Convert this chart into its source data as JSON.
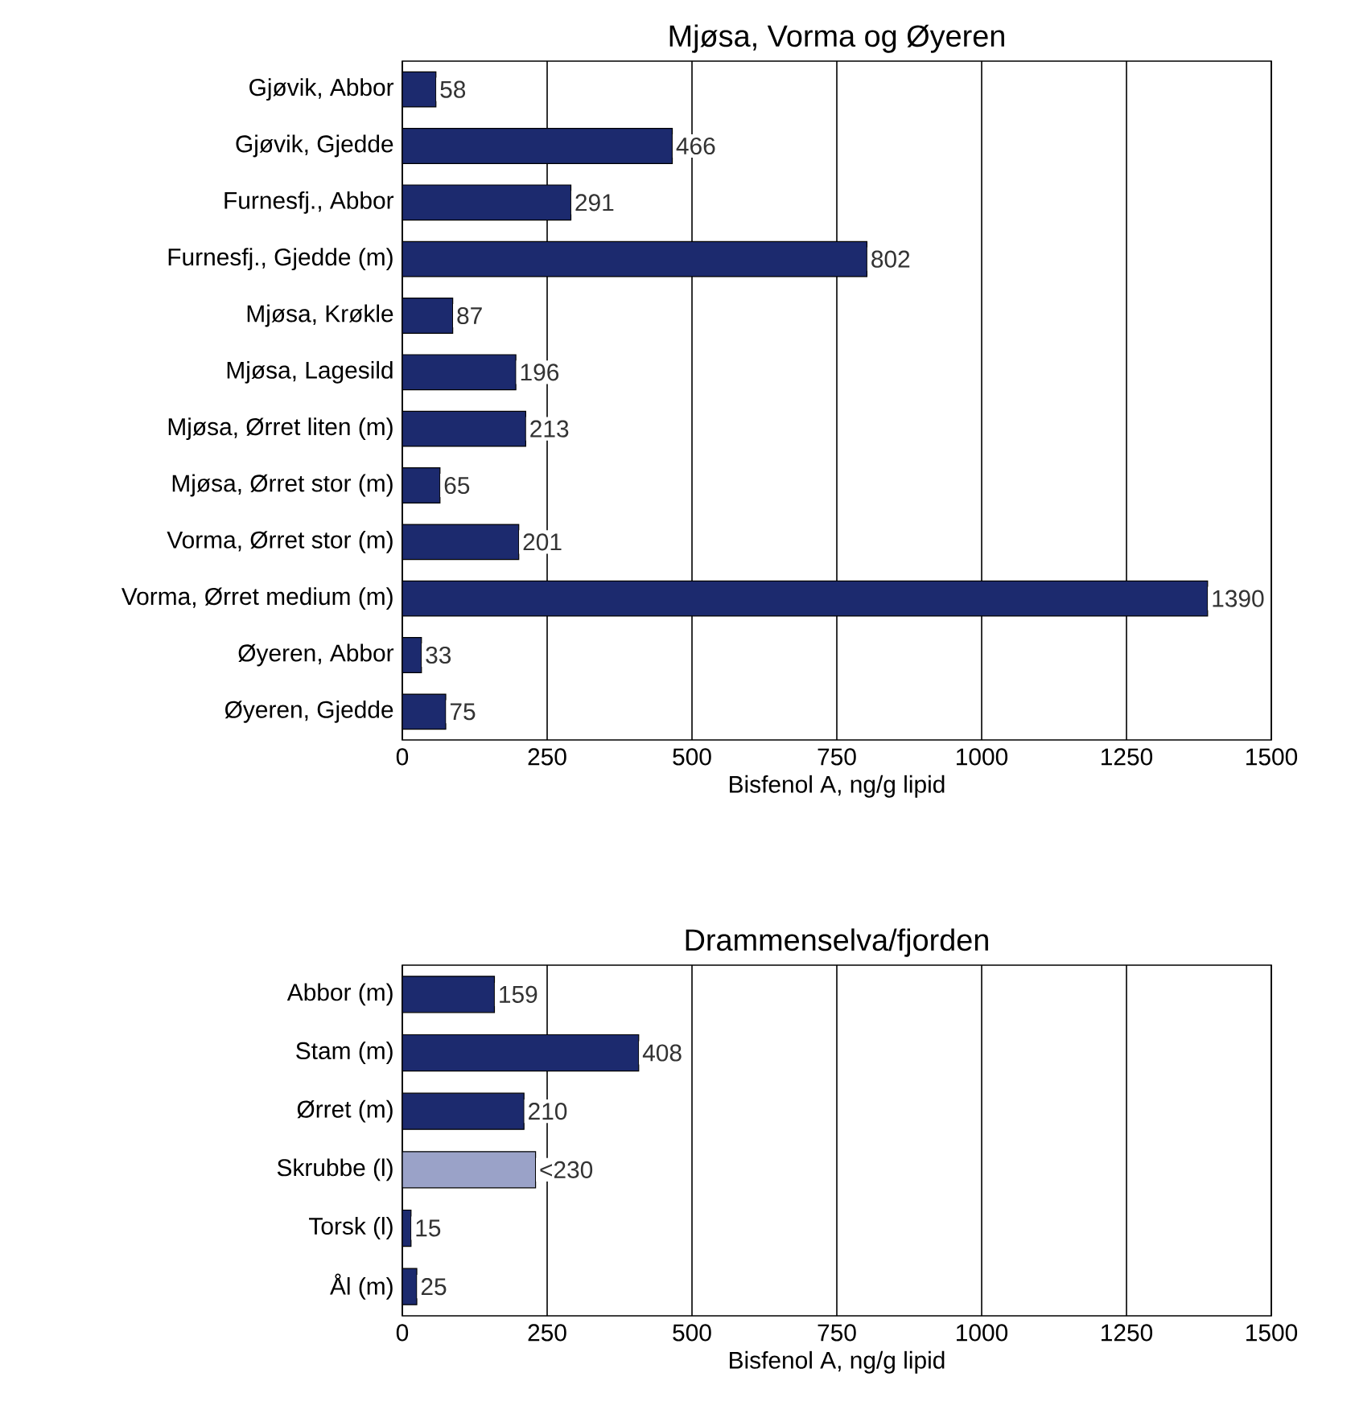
{
  "chart_data": [
    {
      "type": "bar",
      "orientation": "horizontal",
      "title": "Mjøsa, Vorma og Øyeren",
      "xlabel": "Bisfenol A, ng/g lipid",
      "categories": [
        "Gjøvik, Abbor",
        "Gjøvik, Gjedde",
        "Furnesfj., Abbor",
        "Furnesfj., Gjedde (m)",
        "Mjøsa, Krøkle",
        "Mjøsa, Lagesild",
        "Mjøsa, Ørret liten (m)",
        "Mjøsa, Ørret stor (m)",
        "Vorma, Ørret stor (m)",
        "Vorma, Ørret medium (m)",
        "Øyeren, Abbor",
        "Øyeren, Gjedde"
      ],
      "values": [
        58,
        466,
        291,
        802,
        87,
        196,
        213,
        65,
        201,
        1390,
        33,
        75
      ],
      "color": "#1c2a6e",
      "xlim": [
        0,
        1500
      ],
      "xticks": [
        0,
        250,
        500,
        750,
        1000,
        1250,
        1500
      ],
      "grid": "x",
      "data_labels": true
    },
    {
      "type": "bar",
      "orientation": "horizontal",
      "title": "Drammenselva/fjorden",
      "xlabel": "Bisfenol A, ng/g lipid",
      "categories": [
        "Abbor (m)",
        "Stam (m)",
        "Ørret (m)",
        "Skrubbe (l)",
        "Torsk (l)",
        "Ål (m)"
      ],
      "values": [
        159,
        408,
        210,
        230,
        15,
        25
      ],
      "colors": [
        "#1c2a6e",
        "#1c2a6e",
        "#1c2a6e",
        "#9aa2c8",
        "#1c2a6e",
        "#1c2a6e"
      ],
      "value_labels": [
        "159",
        "408",
        "210",
        "<230",
        "15",
        "25"
      ],
      "xlim": [
        0,
        1500
      ],
      "xticks": [
        0,
        250,
        500,
        750,
        1000,
        1250,
        1500
      ],
      "grid": "x"
    }
  ]
}
